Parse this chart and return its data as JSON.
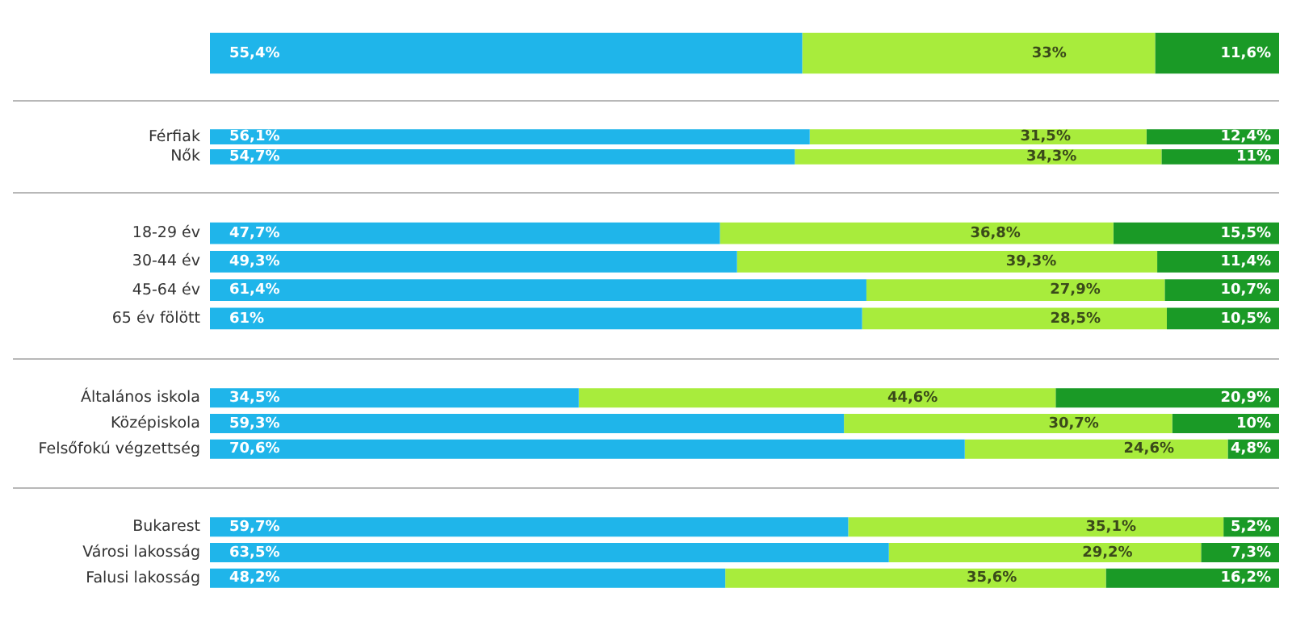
{
  "chart_data": [
    {
      "type": "bar",
      "orientation": "horizontal",
      "stacked": true,
      "tick_labels": "y",
      "grid": false,
      "legend": false,
      "categories": [
        null
      ],
      "series": [
        {
          "color": "#1fb5ea",
          "values": [
            55.4
          ],
          "value_labels": [
            "55,4%"
          ]
        },
        {
          "color": "#a8ec3c",
          "values": [
            33
          ],
          "value_labels": [
            "33%"
          ]
        },
        {
          "color": "#1a9a26",
          "values": [
            11.6
          ],
          "value_labels": [
            "11,6%"
          ]
        }
      ]
    },
    {
      "type": "bar",
      "orientation": "horizontal",
      "stacked": true,
      "tick_labels": "y",
      "grid": false,
      "legend": false,
      "categories": [
        "Férfiak",
        "Nők"
      ],
      "series": [
        {
          "color": "#1fb5ea",
          "values": [
            56.1,
            54.7
          ],
          "value_labels": [
            "56,1%",
            "54,7%"
          ]
        },
        {
          "color": "#a8ec3c",
          "values": [
            31.5,
            34.3
          ],
          "value_labels": [
            "31,5%",
            "34,3%"
          ]
        },
        {
          "color": "#1a9a26",
          "values": [
            12.4,
            11
          ],
          "value_labels": [
            "12,4%",
            "11%"
          ]
        }
      ]
    },
    {
      "type": "bar",
      "orientation": "horizontal",
      "stacked": true,
      "tick_labels": "y",
      "grid": false,
      "legend": false,
      "categories": [
        "18-29 év",
        "30-44 év",
        "45-64 év",
        "65 év fölött"
      ],
      "series": [
        {
          "color": "#1fb5ea",
          "values": [
            47.7,
            49.3,
            61.4,
            61
          ],
          "value_labels": [
            "47,7%",
            "49,3%",
            "61,4%",
            "61%"
          ]
        },
        {
          "color": "#a8ec3c",
          "values": [
            36.8,
            39.3,
            27.9,
            28.5
          ],
          "value_labels": [
            "36,8%",
            "39,3%",
            "27,9%",
            "28,5%"
          ]
        },
        {
          "color": "#1a9a26",
          "values": [
            15.5,
            11.4,
            10.7,
            10.5
          ],
          "value_labels": [
            "15,5%",
            "11,4%",
            "10,7%",
            "10,5%"
          ]
        }
      ]
    },
    {
      "type": "bar",
      "orientation": "horizontal",
      "stacked": true,
      "tick_labels": "y",
      "grid": false,
      "legend": false,
      "categories": [
        "Általános iskola",
        "Középiskola",
        "Felsőfokú végzettség"
      ],
      "series": [
        {
          "color": "#1fb5ea",
          "values": [
            34.5,
            59.3,
            70.6
          ],
          "value_labels": [
            "34,5%",
            "59,3%",
            "70,6%"
          ]
        },
        {
          "color": "#a8ec3c",
          "values": [
            44.6,
            30.7,
            24.6
          ],
          "value_labels": [
            "44,6%",
            "30,7%",
            "24,6%"
          ]
        },
        {
          "color": "#1a9a26",
          "values": [
            20.9,
            10,
            4.8
          ],
          "value_labels": [
            "20,9%",
            "10%",
            "4,8%"
          ]
        }
      ]
    },
    {
      "type": "bar",
      "orientation": "horizontal",
      "stacked": true,
      "tick_labels": "y",
      "grid": false,
      "legend": false,
      "categories": [
        "Bukarest",
        "Városi lakosság",
        "Falusi lakosság"
      ],
      "series": [
        {
          "color": "#1fb5ea",
          "values": [
            59.7,
            63.5,
            48.2
          ],
          "value_labels": [
            "59,7%",
            "63,5%",
            "48,2%"
          ]
        },
        {
          "color": "#a8ec3c",
          "values": [
            35.1,
            29.2,
            35.6
          ],
          "value_labels": [
            "35,1%",
            "29,2%",
            "35,6%"
          ]
        },
        {
          "color": "#1a9a26",
          "values": [
            5.2,
            7.3,
            16.2
          ],
          "value_labels": [
            "5,2%",
            "7,3%",
            "16,2%"
          ]
        }
      ]
    }
  ]
}
